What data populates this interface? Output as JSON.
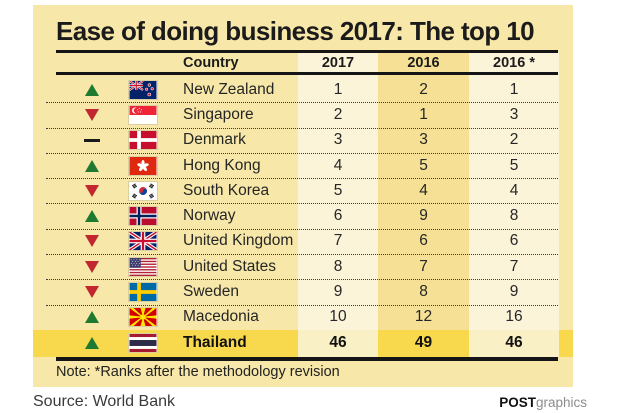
{
  "title": "Ease of doing business 2017: The top 10",
  "header": {
    "country": "Country",
    "y2017": "2017",
    "y2016": "2016",
    "y2016_revised": "2016 *"
  },
  "rows": [
    {
      "country": "New Zealand",
      "flag": "new-zealand",
      "trend": "up",
      "r2017": "1",
      "r2016": "2",
      "r2016_revised": "1",
      "highlight": false
    },
    {
      "country": "Singapore",
      "flag": "singapore",
      "trend": "down",
      "r2017": "2",
      "r2016": "1",
      "r2016_revised": "3",
      "highlight": false
    },
    {
      "country": "Denmark",
      "flag": "denmark",
      "trend": "same",
      "r2017": "3",
      "r2016": "3",
      "r2016_revised": "2",
      "highlight": false
    },
    {
      "country": "Hong Kong",
      "flag": "hong-kong",
      "trend": "up",
      "r2017": "4",
      "r2016": "5",
      "r2016_revised": "5",
      "highlight": false
    },
    {
      "country": "South Korea",
      "flag": "south-korea",
      "trend": "down",
      "r2017": "5",
      "r2016": "4",
      "r2016_revised": "4",
      "highlight": false
    },
    {
      "country": "Norway",
      "flag": "norway",
      "trend": "up",
      "r2017": "6",
      "r2016": "9",
      "r2016_revised": "8",
      "highlight": false
    },
    {
      "country": "United Kingdom",
      "flag": "united-kingdom",
      "trend": "down",
      "r2017": "7",
      "r2016": "6",
      "r2016_revised": "6",
      "highlight": false
    },
    {
      "country": "United States",
      "flag": "united-states",
      "trend": "down",
      "r2017": "8",
      "r2016": "7",
      "r2016_revised": "7",
      "highlight": false
    },
    {
      "country": "Sweden",
      "flag": "sweden",
      "trend": "down",
      "r2017": "9",
      "r2016": "8",
      "r2016_revised": "9",
      "highlight": false
    },
    {
      "country": "Macedonia",
      "flag": "macedonia",
      "trend": "up",
      "r2017": "10",
      "r2016": "12",
      "r2016_revised": "16",
      "highlight": false
    },
    {
      "country": "Thailand",
      "flag": "thailand",
      "trend": "up",
      "r2017": "46",
      "r2016": "49",
      "r2016_revised": "46",
      "highlight": true
    }
  ],
  "note": "Note: *Ranks after the methodology revision",
  "source": "Source: World Bank",
  "credit": {
    "bold": "POST",
    "light": "graphics"
  },
  "colors": {
    "panel_background": "#F7E7A8",
    "column_stripe_cream": "#FBF4D9",
    "column_stripe_yellow": "#F5E095",
    "highlight_row_gold": "#F8D84D",
    "highlight_cell_cream": "#FAF0C6",
    "trend_up_green": "#1E7A30",
    "trend_down_red": "#C2272F",
    "text_ink": "#1B1B1B",
    "credit_gray": "#8D8D8D"
  },
  "chart_data": {
    "type": "table",
    "title": "Ease of doing business 2017: The top 10",
    "columns": [
      "Country",
      "2017",
      "2016",
      "2016 *"
    ],
    "rows": [
      [
        "New Zealand",
        1,
        2,
        1
      ],
      [
        "Singapore",
        2,
        1,
        3
      ],
      [
        "Denmark",
        3,
        3,
        2
      ],
      [
        "Hong Kong",
        4,
        5,
        5
      ],
      [
        "South Korea",
        5,
        4,
        4
      ],
      [
        "Norway",
        6,
        9,
        8
      ],
      [
        "United Kingdom",
        7,
        6,
        6
      ],
      [
        "United States",
        8,
        7,
        7
      ],
      [
        "Sweden",
        9,
        8,
        9
      ],
      [
        "Macedonia",
        10,
        12,
        16
      ],
      [
        "Thailand",
        46,
        49,
        46
      ]
    ],
    "trend_per_row": [
      "up",
      "down",
      "same",
      "up",
      "down",
      "up",
      "down",
      "down",
      "down",
      "up",
      "up"
    ],
    "highlight_row": "Thailand",
    "note": "Note: *Ranks after the methodology revision",
    "source": "World Bank"
  }
}
